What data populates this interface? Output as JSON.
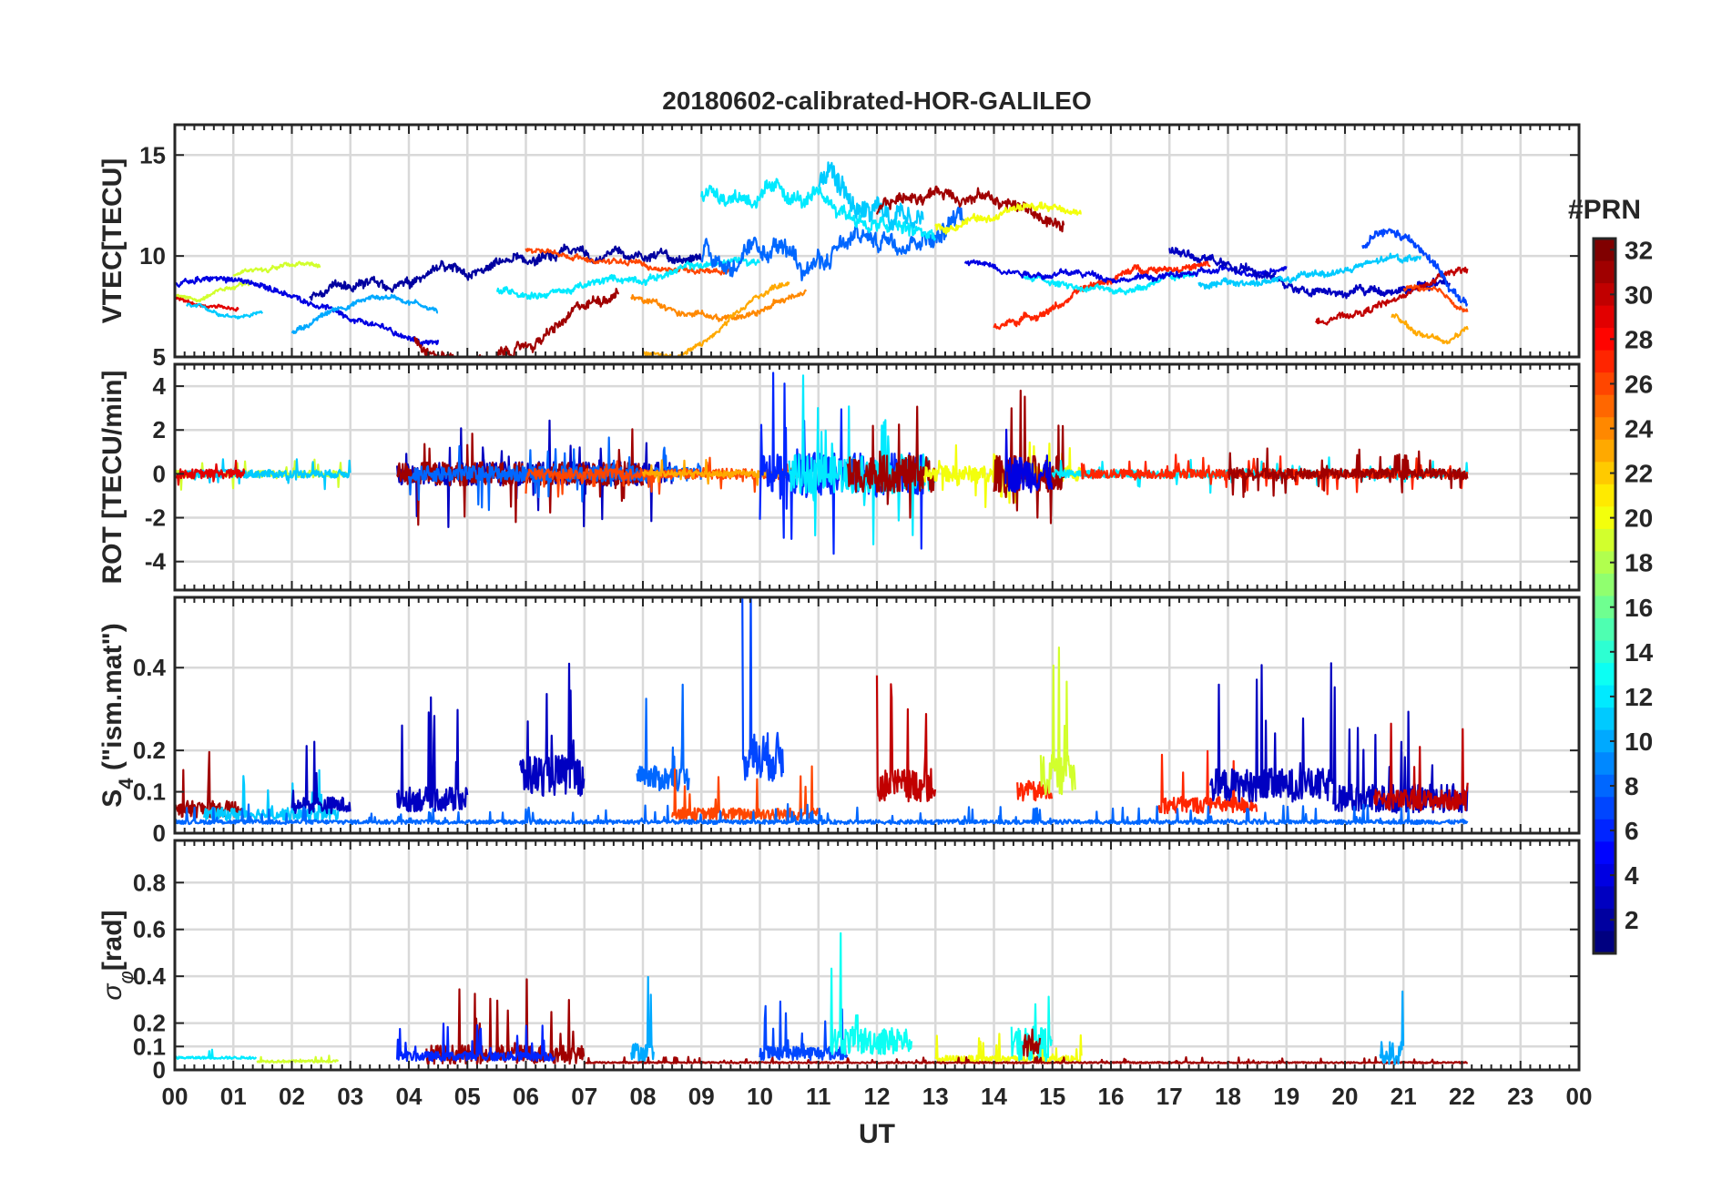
{
  "chart_data": {
    "type": "line",
    "title": "20180602-calibrated-HOR-GALILEO",
    "xlabel": "UT",
    "x_range_hours": [
      0,
      24
    ],
    "x_tick_labels": [
      "00",
      "01",
      "02",
      "03",
      "04",
      "05",
      "06",
      "07",
      "08",
      "09",
      "10",
      "11",
      "12",
      "13",
      "14",
      "15",
      "16",
      "17",
      "18",
      "19",
      "20",
      "21",
      "22",
      "23",
      "00"
    ],
    "grid": true,
    "colorbar": {
      "title": "#PRN",
      "range": [
        1,
        32
      ],
      "tick_labels": [
        "2",
        "4",
        "6",
        "8",
        "10",
        "12",
        "14",
        "16",
        "18",
        "20",
        "22",
        "24",
        "26",
        "28",
        "30",
        "32"
      ],
      "colormap": "jet",
      "position": "right"
    },
    "panels": [
      {
        "ylabel": "VTEC[TECU]",
        "ylim": [
          5,
          16.5
        ],
        "y_ticks": [
          5,
          10,
          15
        ],
        "y_tick_labels": [
          "5",
          "10",
          "15"
        ],
        "series": [
          {
            "prn": 19,
            "start": 0.0,
            "end": 1.3,
            "base": 8.3,
            "amp": 0.4,
            "noise": 0.25
          },
          {
            "prn": 29,
            "start": 0.0,
            "end": 1.1,
            "base": 7.7,
            "amp": 0.3,
            "noise": 0.2
          },
          {
            "prn": 19,
            "start": 1.0,
            "end": 2.5,
            "base": 9.2,
            "amp": 0.4,
            "noise": 0.25
          },
          {
            "prn": 11,
            "start": 0.2,
            "end": 1.5,
            "base": 7.4,
            "amp": 0.3,
            "noise": 0.2
          },
          {
            "prn": 4,
            "start": 0.0,
            "end": 4.5,
            "base": 7.2,
            "amp": 1.6,
            "noise": 0.35
          },
          {
            "prn": 10,
            "start": 2.0,
            "end": 4.5,
            "base": 6.8,
            "amp": 1.2,
            "noise": 0.3
          },
          {
            "prn": 2,
            "start": 2.3,
            "end": 9.0,
            "base": 8.8,
            "amp": 1.2,
            "noise": 0.55
          },
          {
            "prn": 31,
            "start": 4.1,
            "end": 7.6,
            "base": 7.2,
            "amp": 2.3,
            "noise": 0.6
          },
          {
            "prn": 26,
            "start": 6.0,
            "end": 9.5,
            "base": 9.9,
            "amp": 0.5,
            "noise": 0.3
          },
          {
            "prn": 12,
            "start": 5.5,
            "end": 10.0,
            "base": 9.0,
            "amp": 0.8,
            "noise": 0.4
          },
          {
            "prn": 24,
            "start": 7.8,
            "end": 10.8,
            "base": 8.2,
            "amp": 1.2,
            "noise": 0.35
          },
          {
            "prn": 23,
            "start": 8.0,
            "end": 10.5,
            "base": 7.0,
            "amp": 2.0,
            "noise": 0.3
          },
          {
            "prn": 8,
            "start": 9.0,
            "end": 13.5,
            "base": 11.2,
            "amp": 1.5,
            "noise": 1.1
          },
          {
            "prn": 12,
            "start": 9.0,
            "end": 13.0,
            "base": 12.0,
            "amp": 1.2,
            "noise": 0.9
          },
          {
            "prn": 11,
            "start": 11.0,
            "end": 12.8,
            "base": 12.4,
            "amp": 1.5,
            "noise": 1.4
          },
          {
            "prn": 31,
            "start": 12.0,
            "end": 15.2,
            "base": 11.8,
            "amp": 1.5,
            "noise": 0.7
          },
          {
            "prn": 20,
            "start": 13.0,
            "end": 15.5,
            "base": 11.8,
            "amp": 0.6,
            "noise": 0.45
          },
          {
            "prn": 27,
            "start": 14.0,
            "end": 17.7,
            "base": 8.0,
            "amp": 1.6,
            "noise": 0.4
          },
          {
            "prn": 12,
            "start": 14.5,
            "end": 17.5,
            "base": 9.0,
            "amp": 0.6,
            "noise": 0.35
          },
          {
            "prn": 4,
            "start": 13.5,
            "end": 19.0,
            "base": 9.6,
            "amp": 0.6,
            "noise": 0.35
          },
          {
            "prn": 3,
            "start": 17.0,
            "end": 21.8,
            "base": 9.6,
            "amp": 1.4,
            "noise": 0.5
          },
          {
            "prn": 11,
            "start": 17.5,
            "end": 21.3,
            "base": 9.3,
            "amp": 0.7,
            "noise": 0.4
          },
          {
            "prn": 30,
            "start": 19.5,
            "end": 22.1,
            "base": 8.0,
            "amp": 1.2,
            "noise": 0.4
          },
          {
            "prn": 7,
            "start": 20.3,
            "end": 22.1,
            "base": 9.0,
            "amp": 2.0,
            "noise": 0.5
          },
          {
            "prn": 23,
            "start": 20.8,
            "end": 22.1,
            "base": 6.7,
            "amp": 0.8,
            "noise": 0.3
          },
          {
            "prn": 26,
            "start": 21.0,
            "end": 22.1,
            "base": 7.8,
            "amp": 0.6,
            "noise": 0.3
          }
        ]
      },
      {
        "ylabel": "ROT [TECU/min]",
        "ylim": [
          -5.3,
          5.0
        ],
        "y_ticks": [
          -4,
          -2,
          0,
          2,
          4
        ],
        "y_tick_labels": [
          "-4",
          "-2",
          "0",
          "2",
          "4"
        ],
        "series": [
          {
            "prn": 19,
            "start": 0.0,
            "end": 3.0,
            "base": 0,
            "noise": 0.25
          },
          {
            "prn": 11,
            "start": 0.2,
            "end": 3.0,
            "base": 0,
            "noise": 0.3
          },
          {
            "prn": 29,
            "start": 0.0,
            "end": 1.2,
            "base": 0,
            "noise": 0.35
          },
          {
            "prn": 3,
            "start": 3.8,
            "end": 8.5,
            "base": 0,
            "noise": 0.9
          },
          {
            "prn": 31,
            "start": 3.8,
            "end": 8.0,
            "base": 0,
            "noise": 0.9
          },
          {
            "prn": 8,
            "start": 4.0,
            "end": 9.0,
            "base": 0,
            "noise": 0.6
          },
          {
            "prn": 26,
            "start": 6.0,
            "end": 10.8,
            "base": 0,
            "noise": 0.4
          },
          {
            "prn": 23,
            "start": 8.0,
            "end": 10.5,
            "base": 0,
            "noise": 0.25
          },
          {
            "prn": 6,
            "start": 10.0,
            "end": 12.8,
            "base": 0,
            "noise": 1.6
          },
          {
            "prn": 12,
            "start": 10.5,
            "end": 13.0,
            "base": 0,
            "noise": 1.5
          },
          {
            "prn": 31,
            "start": 11.5,
            "end": 13.0,
            "base": 0,
            "noise": 1.4
          },
          {
            "prn": 20,
            "start": 12.8,
            "end": 15.5,
            "base": 0,
            "noise": 0.6
          },
          {
            "prn": 31,
            "start": 14.0,
            "end": 15.2,
            "base": 0,
            "noise": 1.4
          },
          {
            "prn": 4,
            "start": 14.2,
            "end": 15.0,
            "base": 0,
            "noise": 1.4
          },
          {
            "prn": 12,
            "start": 15.0,
            "end": 22.1,
            "base": 0,
            "noise": 0.3
          },
          {
            "prn": 27,
            "start": 15.5,
            "end": 22.1,
            "base": 0,
            "noise": 0.35
          },
          {
            "prn": 31,
            "start": 18.0,
            "end": 22.1,
            "base": 0,
            "noise": 0.4
          }
        ]
      },
      {
        "ylabel": "S4 (\"ism.mat\")",
        "ylabel_main": "S",
        "ylabel_sub": "4",
        "ylabel_rest": " (\"ism.mat\")",
        "ylim": [
          0,
          0.57
        ],
        "y_ticks": [
          0,
          0.1,
          0.2,
          0.4
        ],
        "y_tick_labels": [
          "0",
          "0.1",
          "0.2",
          "0.4"
        ],
        "series": [
          {
            "prn": 31,
            "start": 0.0,
            "end": 1.2,
            "base": 0.05,
            "noise": 0.04
          },
          {
            "prn": 11,
            "start": 0.5,
            "end": 2.8,
            "base": 0.04,
            "noise": 0.03
          },
          {
            "prn": 3,
            "start": 2.0,
            "end": 3.0,
            "base": 0.06,
            "noise": 0.04
          },
          {
            "prn": 3,
            "start": 3.8,
            "end": 5.0,
            "base": 0.07,
            "noise": 0.06
          },
          {
            "prn": 3,
            "start": 5.9,
            "end": 7.0,
            "base": 0.12,
            "noise": 0.1
          },
          {
            "prn": 8,
            "start": 7.9,
            "end": 8.8,
            "base": 0.12,
            "noise": 0.06
          },
          {
            "prn": 7,
            "start": 9.7,
            "end": 10.4,
            "base": 0.16,
            "noise": 0.12
          },
          {
            "prn": 26,
            "start": 8.5,
            "end": 11.0,
            "base": 0.04,
            "noise": 0.03
          },
          {
            "prn": 30,
            "start": 12.0,
            "end": 13.0,
            "base": 0.1,
            "noise": 0.08
          },
          {
            "prn": 27,
            "start": 14.4,
            "end": 15.0,
            "base": 0.09,
            "noise": 0.05
          },
          {
            "prn": 19,
            "start": 14.8,
            "end": 15.4,
            "base": 0.12,
            "noise": 0.1
          },
          {
            "prn": 27,
            "start": 16.8,
            "end": 18.5,
            "base": 0.06,
            "noise": 0.04
          },
          {
            "prn": 3,
            "start": 17.7,
            "end": 19.8,
            "base": 0.1,
            "noise": 0.08
          },
          {
            "prn": 3,
            "start": 19.8,
            "end": 22.1,
            "base": 0.07,
            "noise": 0.07
          },
          {
            "prn": 30,
            "start": 20.5,
            "end": 22.1,
            "base": 0.07,
            "noise": 0.05
          },
          {
            "prn": 8,
            "start": 0.0,
            "end": 22.1,
            "base": 0.025,
            "noise": 0.01
          }
        ]
      },
      {
        "ylabel": "σφ[rad]",
        "ylabel_main": "σ",
        "ylabel_sub": "φ",
        "ylabel_rest": "[rad]",
        "ylim": [
          0,
          0.98
        ],
        "y_ticks": [
          0,
          0.1,
          0.2,
          0.4,
          0.6,
          0.8
        ],
        "y_tick_labels": [
          "0",
          "0.1",
          "0.2",
          "0.4",
          "0.6",
          "0.8"
        ],
        "series": [
          {
            "prn": 12,
            "start": 0.0,
            "end": 1.4,
            "base": 0.05,
            "noise": 0.01
          },
          {
            "prn": 19,
            "start": 1.4,
            "end": 2.8,
            "base": 0.035,
            "noise": 0.01
          },
          {
            "prn": 31,
            "start": 4.3,
            "end": 7.0,
            "base": 0.05,
            "noise": 0.08
          },
          {
            "prn": 6,
            "start": 3.8,
            "end": 6.5,
            "base": 0.05,
            "noise": 0.04
          },
          {
            "prn": 10,
            "start": 7.8,
            "end": 8.2,
            "base": 0.06,
            "noise": 0.08
          },
          {
            "prn": 7,
            "start": 10.0,
            "end": 11.5,
            "base": 0.06,
            "noise": 0.06
          },
          {
            "prn": 13,
            "start": 11.2,
            "end": 12.6,
            "base": 0.1,
            "noise": 0.12
          },
          {
            "prn": 20,
            "start": 13.0,
            "end": 15.5,
            "base": 0.04,
            "noise": 0.03
          },
          {
            "prn": 13,
            "start": 14.3,
            "end": 15.0,
            "base": 0.08,
            "noise": 0.15
          },
          {
            "prn": 31,
            "start": 14.5,
            "end": 14.8,
            "base": 0.08,
            "noise": 0.1
          },
          {
            "prn": 31,
            "start": 7.0,
            "end": 22.1,
            "base": 0.03,
            "noise": 0.006
          },
          {
            "prn": 10,
            "start": 20.6,
            "end": 21.0,
            "base": 0.05,
            "noise": 0.1
          }
        ]
      }
    ]
  }
}
